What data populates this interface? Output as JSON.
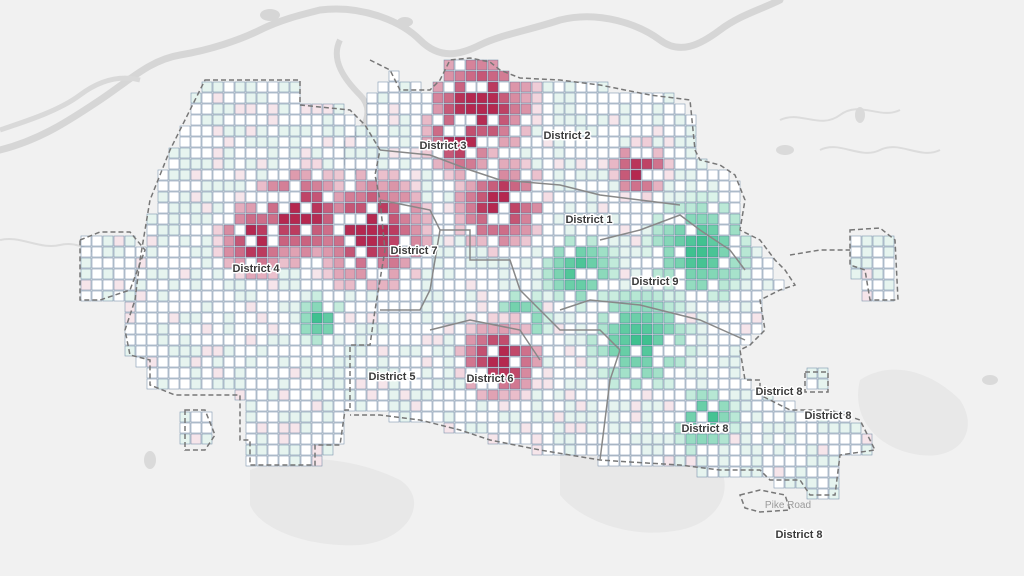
{
  "map": {
    "labels": {
      "district_1": "District 1",
      "district_2": "District 2",
      "district_3": "District 3",
      "district_4": "District 4",
      "district_5": "District 5",
      "district_6": "District 6",
      "district_7": "District 7",
      "district_8_main": "District 8",
      "district_8_east_a": "District 8",
      "district_8_east_b": "District 8",
      "district_8_south": "District 8",
      "district_9": "District 9",
      "place_pike_road": "Pike Road"
    },
    "colors": {
      "background": "#f1f1f1",
      "water": "#d9d9d9",
      "urban_area": "#e7e7e7",
      "grid_line": "#4f6f93",
      "cell_base": "#ffffff",
      "high_value": "#b5284f",
      "low_value": "#3fc18f",
      "district_boundary": "#7a7a7a"
    },
    "legend_encoding": "diverging: red = high, green = low"
  }
}
